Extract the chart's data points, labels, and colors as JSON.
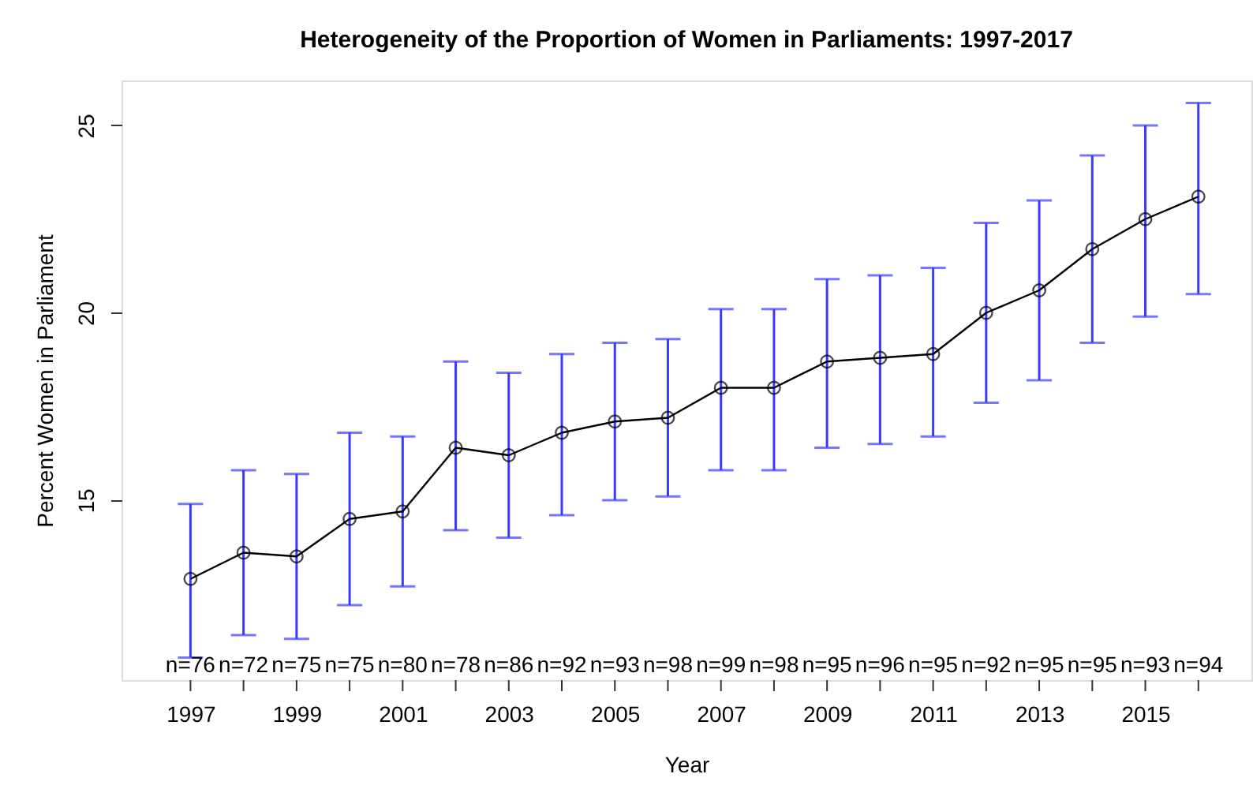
{
  "chart_data": {
    "type": "line",
    "title": "Heterogeneity of the Proportion of Women in Parliaments: 1997-2017",
    "xlabel": "Year",
    "ylabel": "Percent Women in Parliament",
    "x": [
      1997,
      1998,
      1999,
      2000,
      2001,
      2002,
      2003,
      2004,
      2005,
      2006,
      2007,
      2008,
      2009,
      2010,
      2011,
      2012,
      2013,
      2014,
      2015,
      2016
    ],
    "series": [
      {
        "color": "#000000",
        "values": [
          12.9,
          13.6,
          13.5,
          14.5,
          14.7,
          16.4,
          16.2,
          16.8,
          17.1,
          17.2,
          18.0,
          18.0,
          18.7,
          18.8,
          18.9,
          20.0,
          20.6,
          21.7,
          22.5,
          23.1
        ],
        "errors": [
          [
            10.8,
            14.9
          ],
          [
            11.4,
            15.8
          ],
          [
            11.3,
            15.7
          ],
          [
            12.2,
            16.8
          ],
          [
            12.7,
            16.7
          ],
          [
            14.2,
            18.7
          ],
          [
            14.0,
            18.4
          ],
          [
            14.6,
            18.9
          ],
          [
            15.0,
            19.2
          ],
          [
            15.1,
            19.3
          ],
          [
            15.8,
            20.1
          ],
          [
            15.8,
            20.1
          ],
          [
            16.4,
            20.9
          ],
          [
            16.5,
            21.0
          ],
          [
            16.7,
            21.2
          ],
          [
            17.6,
            22.4
          ],
          [
            18.2,
            23.0
          ],
          [
            19.2,
            24.2
          ],
          [
            19.9,
            25.0
          ],
          [
            20.5,
            25.6
          ]
        ]
      }
    ],
    "marker": "circle",
    "line_style": "solid",
    "grid": false,
    "xlim": [
      1995.7,
      2017.0
    ],
    "ylim": [
      10.2,
      26.2
    ],
    "xticks": [
      1997,
      {
        "value": 1998,
        "label": null
      },
      1999,
      {
        "value": 2000,
        "label": null
      },
      2001,
      {
        "value": 2002,
        "label": null
      },
      2003,
      {
        "value": 2004,
        "label": null
      },
      2005,
      {
        "value": 2006,
        "label": null
      },
      2007,
      {
        "value": 2008,
        "label": null
      },
      2009,
      {
        "value": 2010,
        "label": null
      },
      2011,
      {
        "value": 2012,
        "label": null
      },
      2013,
      {
        "value": 2014,
        "label": null
      },
      2015,
      {
        "value": 2016,
        "label": null
      }
    ],
    "yticks": [
      15,
      20,
      25
    ],
    "annotations": [
      "n=76",
      "n=72",
      "n=75",
      "n=75",
      "n=80",
      "n=78",
      "n=86",
      "n=92",
      "n=93",
      "n=98",
      "n=99",
      "n=98",
      "n=95",
      "n=96",
      "n=95",
      "n=92",
      "n=95",
      "n=95",
      "n=93",
      "n=94"
    ]
  }
}
